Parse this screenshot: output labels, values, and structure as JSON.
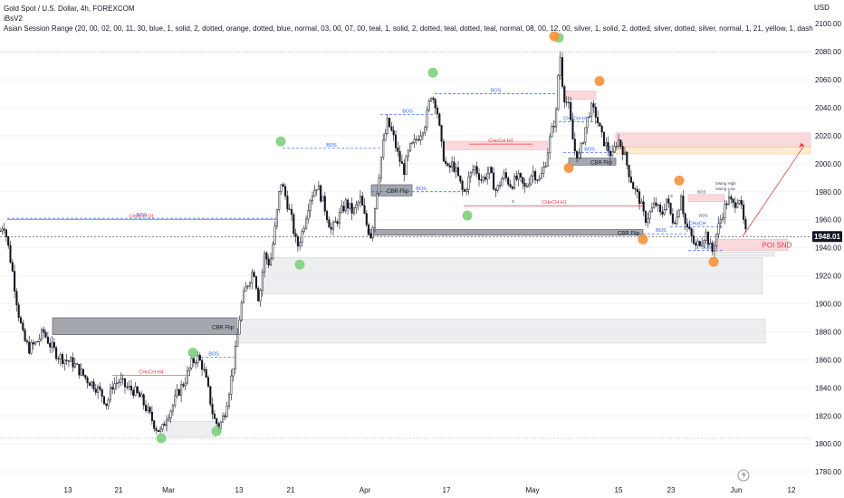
{
  "legend": {
    "symbol_line": "Gold Spot / U.S. Dollar, 4h, FOREXCOM",
    "indicator_1": "iBsV2",
    "indicator_2": "Asian Session Range (20, 00, 02, 00, 11, 30, blue, 1, solid, 2, dotted, orange, dotted, blue, normal, 03, 00, 07, 00, teal, 1, solid, 2, dotted, teal, dotted, teal, normal, 08, 00, 12, 00, silver, 1, solid, 2, dotted, silver, dotted, silver, normal, 1, 21, yellow, 1, dash"
  },
  "colors": {
    "up": "#131722",
    "down": "#131722",
    "green_marker": "#7ed07e",
    "orange_marker": "#f7913a",
    "bos_line": "#2962ff",
    "choch_line": "#f23645",
    "zone_gray": "#e8e9ec",
    "zone_dark": "#787b86",
    "zone_pink": "#f9cdd2",
    "zone_orange": "#fde6c4",
    "current_price_bg": "#131722"
  },
  "chart_data": {
    "type": "candlestick",
    "currency": "USD",
    "ylim": [
      1773,
      2113
    ],
    "y_ticks": [
      1780,
      1800,
      1820,
      1840,
      1860,
      1880,
      1900,
      1920,
      1940,
      1960,
      1980,
      2000,
      2020,
      2040,
      2060,
      2080,
      2100
    ],
    "x_ticks": [
      "13",
      "21",
      "Mar",
      "13",
      "21",
      "Apr",
      "17",
      "May",
      "15",
      "23",
      "Jun",
      "12"
    ],
    "current_price": "1948.01",
    "price_path": [
      [
        0,
        1952
      ],
      [
        4,
        1958
      ],
      [
        8,
        1945
      ],
      [
        14,
        1922
      ],
      [
        20,
        1895
      ],
      [
        26,
        1875
      ],
      [
        32,
        1868
      ],
      [
        40,
        1872
      ],
      [
        48,
        1880
      ],
      [
        56,
        1870
      ],
      [
        64,
        1863
      ],
      [
        72,
        1860
      ],
      [
        80,
        1858
      ],
      [
        88,
        1852
      ],
      [
        96,
        1846
      ],
      [
        104,
        1842
      ],
      [
        112,
        1836
      ],
      [
        118,
        1828
      ],
      [
        124,
        1842
      ],
      [
        132,
        1845
      ],
      [
        140,
        1840
      ],
      [
        148,
        1838
      ],
      [
        156,
        1832
      ],
      [
        164,
        1822
      ],
      [
        172,
        1812
      ],
      [
        178,
        1808
      ],
      [
        184,
        1820
      ],
      [
        190,
        1826
      ],
      [
        196,
        1836
      ],
      [
        204,
        1845
      ],
      [
        212,
        1858
      ],
      [
        218,
        1862
      ],
      [
        224,
        1855
      ],
      [
        230,
        1838
      ],
      [
        236,
        1818
      ],
      [
        242,
        1812
      ],
      [
        248,
        1822
      ],
      [
        254,
        1842
      ],
      [
        260,
        1866
      ],
      [
        266,
        1898
      ],
      [
        272,
        1912
      ],
      [
        280,
        1925
      ],
      [
        286,
        1902
      ],
      [
        292,
        1935
      ],
      [
        298,
        1928
      ],
      [
        304,
        1955
      ],
      [
        310,
        1988
      ],
      [
        316,
        1975
      ],
      [
        322,
        1960
      ],
      [
        328,
        1940
      ],
      [
        334,
        1952
      ],
      [
        342,
        1975
      ],
      [
        350,
        1985
      ],
      [
        358,
        1970
      ],
      [
        366,
        1952
      ],
      [
        374,
        1962
      ],
      [
        382,
        1972
      ],
      [
        390,
        1965
      ],
      [
        398,
        1975
      ],
      [
        404,
        1958
      ],
      [
        410,
        1948
      ],
      [
        416,
        1980
      ],
      [
        422,
        2010
      ],
      [
        428,
        2030
      ],
      [
        434,
        2020
      ],
      [
        440,
        2005
      ],
      [
        446,
        1995
      ],
      [
        452,
        2010
      ],
      [
        458,
        2015
      ],
      [
        464,
        2022
      ],
      [
        470,
        2030
      ],
      [
        476,
        2050
      ],
      [
        482,
        2042
      ],
      [
        488,
        2010
      ],
      [
        494,
        1995
      ],
      [
        500,
        2000
      ],
      [
        506,
        1990
      ],
      [
        512,
        1978
      ],
      [
        518,
        1990
      ],
      [
        524,
        1998
      ],
      [
        532,
        1988
      ],
      [
        540,
        1995
      ],
      [
        548,
        1980
      ],
      [
        556,
        1992
      ],
      [
        564,
        1985
      ],
      [
        572,
        1990
      ],
      [
        580,
        1982
      ],
      [
        588,
        1995
      ],
      [
        596,
        1988
      ],
      [
        602,
        2000
      ],
      [
        608,
        2020
      ],
      [
        614,
        2035
      ],
      [
        618,
        2082
      ],
      [
        622,
        2050
      ],
      [
        628,
        2040
      ],
      [
        634,
        2010
      ],
      [
        640,
        2005
      ],
      [
        646,
        2025
      ],
      [
        652,
        2040
      ],
      [
        658,
        2035
      ],
      [
        664,
        2020
      ],
      [
        670,
        2012
      ],
      [
        676,
        2005
      ],
      [
        682,
        2018
      ],
      [
        688,
        2010
      ],
      [
        694,
        1995
      ],
      [
        700,
        1982
      ],
      [
        706,
        1975
      ],
      [
        712,
        1960
      ],
      [
        718,
        1965
      ],
      [
        724,
        1972
      ],
      [
        730,
        1962
      ],
      [
        736,
        1975
      ],
      [
        742,
        1960
      ],
      [
        748,
        1962
      ],
      [
        752,
        1980
      ],
      [
        756,
        1958
      ],
      [
        762,
        1950
      ],
      [
        768,
        1940
      ],
      [
        774,
        1946
      ],
      [
        780,
        1950
      ],
      [
        786,
        1936
      ],
      [
        792,
        1952
      ],
      [
        798,
        1965
      ],
      [
        804,
        1975
      ],
      [
        810,
        1970
      ],
      [
        816,
        1978
      ],
      [
        820,
        1962
      ],
      [
        824,
        1948
      ]
    ],
    "swing_markers": [
      {
        "type": "low",
        "color": "green",
        "x": 178,
        "price": 1804
      },
      {
        "type": "low",
        "color": "green",
        "x": 239,
        "price": 1809
      },
      {
        "type": "high",
        "color": "green",
        "x": 213,
        "price": 1865
      },
      {
        "type": "high",
        "color": "green",
        "x": 310,
        "price": 2016
      },
      {
        "type": "low",
        "color": "green",
        "x": 331,
        "price": 1928
      },
      {
        "type": "high",
        "color": "green",
        "x": 478,
        "price": 2065
      },
      {
        "type": "low",
        "color": "green",
        "x": 516,
        "price": 1963
      },
      {
        "type": "high",
        "color": "green",
        "x": 617,
        "price": 2090
      },
      {
        "type": "high",
        "color": "orange",
        "x": 612,
        "price": 2091
      },
      {
        "type": "high",
        "color": "orange",
        "x": 662,
        "price": 2059
      },
      {
        "type": "low",
        "color": "orange",
        "x": 628,
        "price": 1997
      },
      {
        "type": "low",
        "color": "orange",
        "x": 710,
        "price": 1946
      },
      {
        "type": "high",
        "color": "orange",
        "x": 750,
        "price": 1988
      },
      {
        "type": "low",
        "color": "orange",
        "x": 788,
        "price": 1930
      }
    ],
    "structure_lines": [
      {
        "label": "BOS",
        "kind": "bos",
        "x1": 8,
        "x2": 305,
        "price": 1961
      },
      {
        "label": "CHoCH D1",
        "kind": "choch",
        "x1": 8,
        "x2": 305,
        "price": 1960
      },
      {
        "label": "CHoCH H4",
        "kind": "choch",
        "x1": 124,
        "x2": 210,
        "price": 1849
      },
      {
        "label": "BOS",
        "kind": "bos",
        "x1": 212,
        "x2": 260,
        "price": 1862
      },
      {
        "label": "BOS",
        "kind": "bos",
        "x1": 312,
        "x2": 420,
        "price": 2011
      },
      {
        "label": "BOS",
        "kind": "bos",
        "x1": 420,
        "x2": 480,
        "price": 2035
      },
      {
        "label": "BOS",
        "kind": "bos",
        "x1": 480,
        "x2": 615,
        "price": 2050
      },
      {
        "label": "BOS",
        "kind": "bos",
        "x1": 410,
        "x2": 520,
        "price": 1980
      },
      {
        "label": "CHoCH H1",
        "kind": "choch",
        "x1": 512,
        "x2": 712,
        "price": 1970
      },
      {
        "label": "CHoCH H1",
        "kind": "bos",
        "x1": 612,
        "x2": 660,
        "price": 2030
      },
      {
        "label": "BOS",
        "kind": "bos",
        "x1": 622,
        "x2": 680,
        "price": 2008
      },
      {
        "label": "CHoCH H1",
        "kind": "choch",
        "x1": 518,
        "x2": 588,
        "price": 2014
      },
      {
        "label": "BOS",
        "kind": "bos",
        "x1": 700,
        "x2": 760,
        "price": 1950
      },
      {
        "label": "BOS",
        "kind": "bos",
        "x1": 760,
        "x2": 800,
        "price": 1938
      },
      {
        "label": "CHoCH",
        "kind": "bos",
        "x1": 740,
        "x2": 800,
        "price": 1955
      }
    ],
    "zones": [
      {
        "label": "",
        "kind": "gray",
        "x1": 180,
        "x2": 238,
        "top": 1816,
        "bottom": 1805
      },
      {
        "label": "CBR Flip",
        "kind": "dark",
        "x1": 58,
        "x2": 262,
        "top": 1890,
        "bottom": 1878
      },
      {
        "label": "",
        "kind": "gray",
        "x1": 262,
        "x2": 845,
        "top": 1889,
        "bottom": 1872
      },
      {
        "label": "",
        "kind": "gray",
        "x1": 290,
        "x2": 842,
        "top": 1933,
        "bottom": 1907
      },
      {
        "label": "CBR Flip",
        "kind": "dark",
        "x1": 410,
        "x2": 455,
        "top": 1985,
        "bottom": 1977
      },
      {
        "label": "CBR Flip",
        "kind": "dark",
        "x1": 406,
        "x2": 710,
        "top": 1953,
        "bottom": 1949
      },
      {
        "label": "CBR Flip",
        "kind": "dark",
        "x1": 628,
        "x2": 680,
        "top": 2004,
        "bottom": 1999
      },
      {
        "label": "",
        "kind": "pink",
        "x1": 492,
        "x2": 605,
        "top": 2016,
        "bottom": 2010
      },
      {
        "label": "",
        "kind": "pink",
        "x1": 622,
        "x2": 658,
        "top": 2052,
        "bottom": 2046
      },
      {
        "label": "",
        "kind": "pink",
        "x1": 680,
        "x2": 895,
        "top": 2022,
        "bottom": 2012
      },
      {
        "label": "",
        "kind": "orange",
        "x1": 680,
        "x2": 895,
        "top": 2012,
        "bottom": 2007
      },
      {
        "label": "",
        "kind": "pink",
        "x1": 760,
        "x2": 800,
        "top": 1978,
        "bottom": 1973
      },
      {
        "label": "POI SND",
        "kind": "pink",
        "x1": 790,
        "x2": 870,
        "top": 1946,
        "bottom": 1938
      },
      {
        "label": "",
        "kind": "gray",
        "x1": 790,
        "x2": 855,
        "top": 1937,
        "bottom": 1934
      }
    ],
    "projection": {
      "x1": 820,
      "price1": 1948,
      "x2": 888,
      "price2": 2013
    },
    "annotations": [
      "Swing High",
      "Swing Low",
      "BOS",
      "BOS",
      "S",
      "S"
    ]
  },
  "footer_icon": "lightning-icon"
}
